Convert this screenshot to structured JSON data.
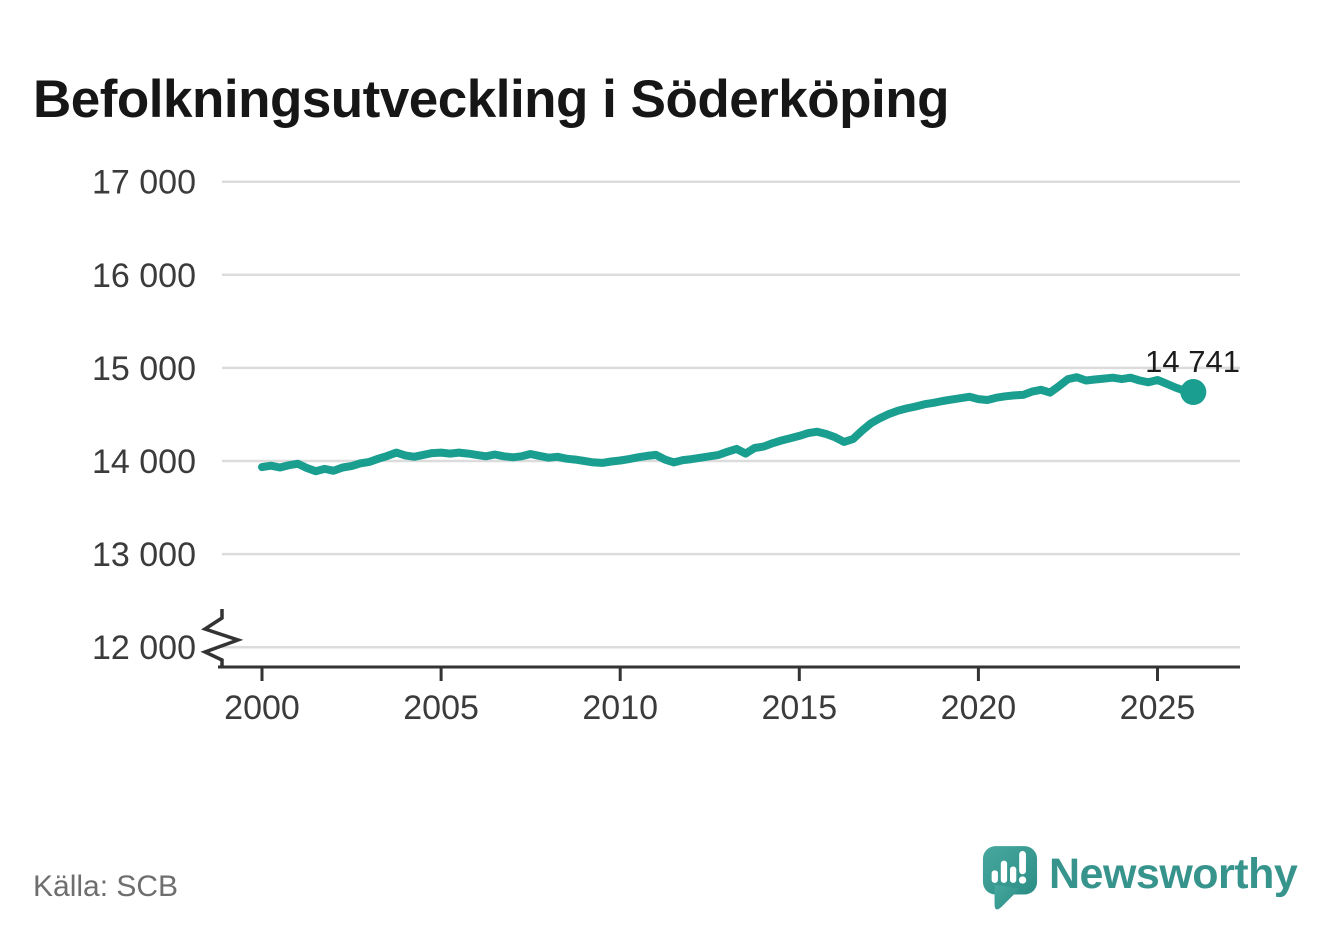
{
  "header": {
    "title": "Befolkningsutveckling i Söderköping"
  },
  "footer": {
    "source": "Källa: SCB",
    "brand": "Newsworthy"
  },
  "colors": {
    "line": "#1a9e8f",
    "grid": "#dcdcdc",
    "axis": "#333333",
    "tick_label": "#3b3b3b",
    "end_label": "#1c1c1c",
    "brand_teal": "#37948d"
  },
  "chart_data": {
    "type": "line",
    "title": "Befolkningsutveckling i Söderköping",
    "xlabel": "",
    "ylabel": "",
    "grid": "horizontal",
    "y_axis": {
      "has_break": true,
      "range_shown": [
        12000,
        17000
      ],
      "ticks": [
        {
          "value": 17000,
          "label": "17 000"
        },
        {
          "value": 16000,
          "label": "16 000"
        },
        {
          "value": 15000,
          "label": "15 000"
        },
        {
          "value": 14000,
          "label": "14 000"
        },
        {
          "value": 13000,
          "label": "13 000"
        },
        {
          "value": 12000,
          "label": "12 000"
        }
      ]
    },
    "x_axis": {
      "ticks": [
        {
          "value": 2000,
          "label": "2000"
        },
        {
          "value": 2005,
          "label": "2005"
        },
        {
          "value": 2010,
          "label": "2010"
        },
        {
          "value": 2015,
          "label": "2015"
        },
        {
          "value": 2020,
          "label": "2020"
        },
        {
          "value": 2025,
          "label": "2025"
        }
      ]
    },
    "end_label": {
      "text": "14 741",
      "value": 14741
    },
    "series": [
      {
        "name": "Befolkning i Söderköping",
        "x_start": 2000.0,
        "x_step_years": 0.25,
        "values": [
          13935,
          13950,
          13930,
          13955,
          13970,
          13925,
          13890,
          13915,
          13895,
          13930,
          13945,
          13975,
          13990,
          14025,
          14055,
          14090,
          14060,
          14045,
          14065,
          14085,
          14090,
          14080,
          14090,
          14080,
          14065,
          14050,
          14070,
          14050,
          14040,
          14050,
          14075,
          14055,
          14035,
          14045,
          14025,
          14015,
          14000,
          13985,
          13980,
          13995,
          14005,
          14020,
          14040,
          14055,
          14065,
          14015,
          13985,
          14010,
          14020,
          14035,
          14050,
          14065,
          14100,
          14130,
          14080,
          14140,
          14155,
          14190,
          14220,
          14245,
          14270,
          14300,
          14315,
          14290,
          14255,
          14205,
          14235,
          14325,
          14405,
          14460,
          14505,
          14540,
          14565,
          14585,
          14610,
          14625,
          14645,
          14660,
          14675,
          14690,
          14665,
          14655,
          14680,
          14695,
          14705,
          14710,
          14745,
          14765,
          14735,
          14805,
          14880,
          14900,
          14865,
          14875,
          14885,
          14895,
          14880,
          14895,
          14865,
          14845,
          14870,
          14830,
          14790,
          14755,
          14741
        ]
      }
    ]
  }
}
